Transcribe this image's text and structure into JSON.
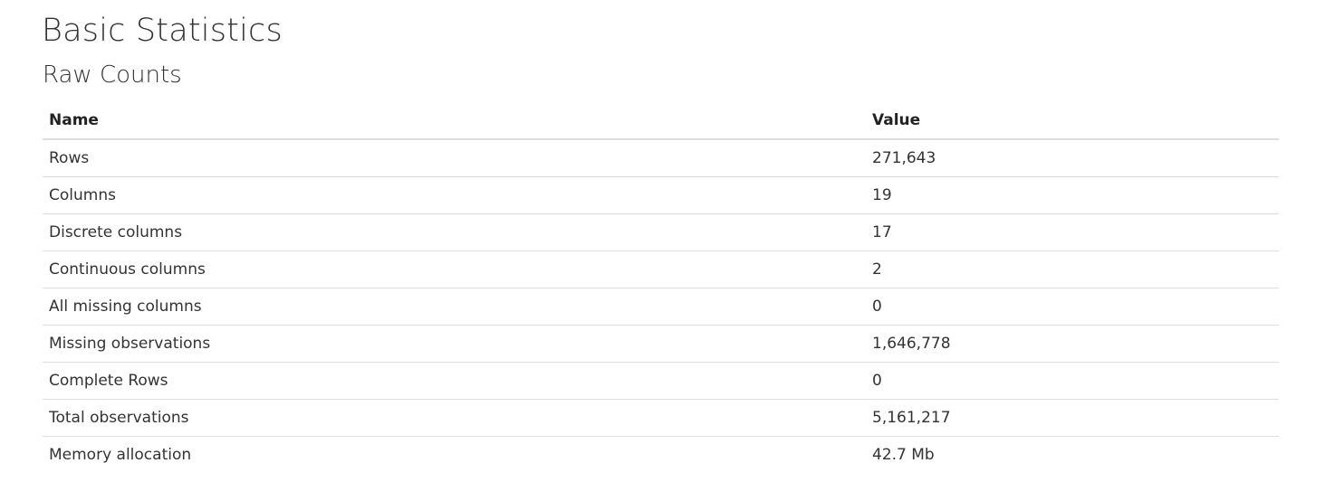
{
  "page": {
    "title": "Basic Statistics",
    "section_title": "Raw Counts"
  },
  "table": {
    "headers": [
      "Name",
      "Value"
    ],
    "rows": [
      {
        "name": "Rows",
        "value": "271,643"
      },
      {
        "name": "Columns",
        "value": "19"
      },
      {
        "name": "Discrete columns",
        "value": "17"
      },
      {
        "name": "Continuous columns",
        "value": "2"
      },
      {
        "name": "All missing columns",
        "value": "0"
      },
      {
        "name": "Missing observations",
        "value": "1,646,778"
      },
      {
        "name": "Complete Rows",
        "value": "0"
      },
      {
        "name": "Total observations",
        "value": "5,161,217"
      },
      {
        "name": "Memory allocation",
        "value": "42.7 Mb"
      }
    ]
  }
}
